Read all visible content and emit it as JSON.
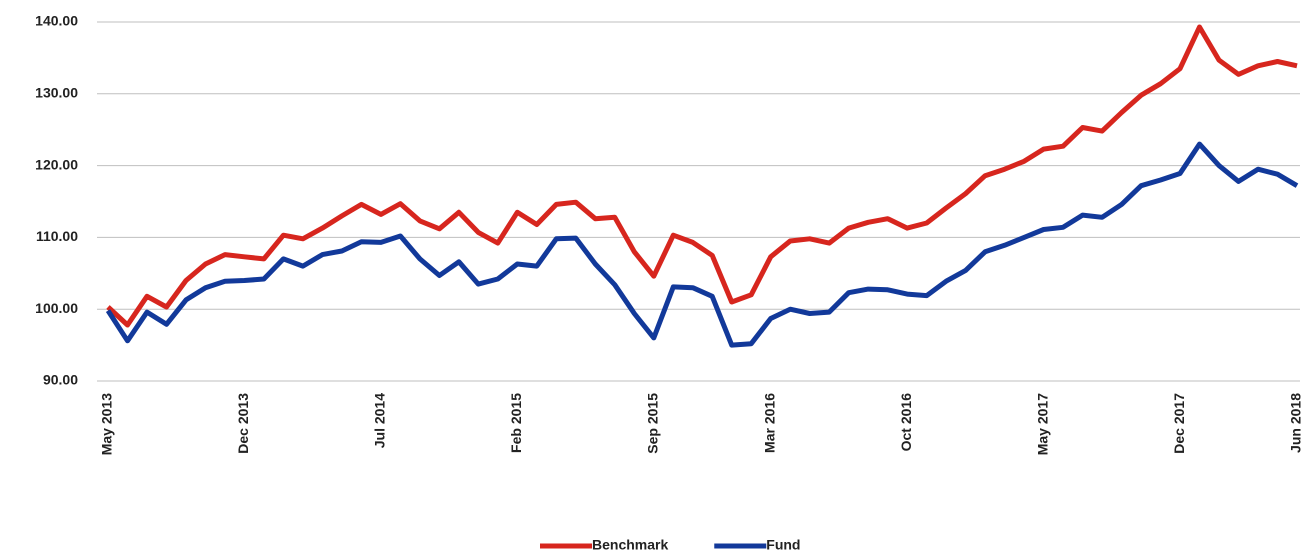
{
  "chart_data": {
    "type": "line",
    "categories": [
      "May 2013",
      null,
      null,
      null,
      null,
      null,
      null,
      "Dec 2013",
      null,
      null,
      null,
      null,
      null,
      null,
      "Jul 2014",
      null,
      null,
      null,
      null,
      null,
      null,
      "Feb 2015",
      null,
      null,
      null,
      null,
      null,
      null,
      "Sep 2015",
      null,
      null,
      null,
      null,
      null,
      "Mar 2016",
      null,
      null,
      null,
      null,
      null,
      null,
      "Oct 2016",
      null,
      null,
      null,
      null,
      null,
      null,
      "May 2017",
      null,
      null,
      null,
      null,
      null,
      null,
      "Dec 2017",
      null,
      null,
      null,
      null,
      null,
      "Jun 2018"
    ],
    "series": [
      {
        "name": "Benchmark",
        "color": "#d7261e",
        "values": [
          100.3,
          97.8,
          101.8,
          100.3,
          104,
          106.3,
          107.6,
          107.3,
          107,
          110.3,
          109.8,
          111.3,
          113,
          114.6,
          113.2,
          114.7,
          112.3,
          111.2,
          113.5,
          110.7,
          109.2,
          113.5,
          111.8,
          114.6,
          114.9,
          112.6,
          112.8,
          108,
          104.6,
          110.3,
          109.3,
          107.5,
          101,
          102,
          107.3,
          109.5,
          109.8,
          109.2,
          111.3,
          112.1,
          112.6,
          111.3,
          112,
          114.1,
          116.1,
          118.6,
          119.5,
          120.6,
          122.3,
          122.7,
          125.3,
          124.8,
          127.4,
          129.8,
          131.4,
          133.5,
          139.3,
          134.7,
          132.7,
          133.9,
          134.5,
          133.9
        ]
      },
      {
        "name": "Fund",
        "color": "#12399a",
        "values": [
          99.8,
          95.6,
          99.6,
          97.9,
          101.3,
          103,
          103.9,
          104,
          104.2,
          107,
          106,
          107.6,
          108.1,
          109.4,
          109.3,
          110.2,
          107,
          104.7,
          106.6,
          103.5,
          104.2,
          106.3,
          106,
          109.8,
          109.9,
          106.3,
          103.4,
          99.4,
          96,
          103.1,
          103,
          101.8,
          95,
          95.2,
          98.7,
          100,
          99.4,
          99.6,
          102.3,
          102.8,
          102.7,
          102.1,
          101.9,
          103.9,
          105.4,
          108,
          108.9,
          110,
          111.1,
          111.4,
          113.1,
          112.8,
          114.6,
          117.2,
          118,
          118.9,
          123,
          120,
          117.8,
          119.5,
          118.8,
          117.2
        ]
      }
    ],
    "ylim": [
      90,
      140
    ],
    "yticks": [
      {
        "value": 90,
        "label": "90.00"
      },
      {
        "value": 100,
        "label": "100.00"
      },
      {
        "value": 110,
        "label": "110.00"
      },
      {
        "value": 120,
        "label": "120.00"
      },
      {
        "value": 130,
        "label": "130.00"
      },
      {
        "value": 140,
        "label": "140.00"
      }
    ],
    "grid": true,
    "legend": "bottom"
  }
}
